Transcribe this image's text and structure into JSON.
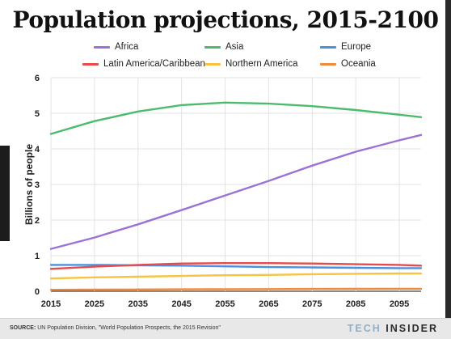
{
  "title": "Population projections, 2015-2100",
  "footer": {
    "source_label": "SOURCE:",
    "source_text": "UN Population Division, \"World Population Prospects, the 2015 Revision\"",
    "brand_tech": "TECH",
    "brand_insider": "INSIDER"
  },
  "chart_data": {
    "type": "line",
    "title": "Population projections, 2015-2100",
    "xlabel": "",
    "ylabel": "Billions of people",
    "xlim": [
      2015,
      2100
    ],
    "ylim": [
      0,
      6
    ],
    "x_ticks": [
      2015,
      2025,
      2035,
      2045,
      2055,
      2065,
      2075,
      2085,
      2095
    ],
    "y_ticks": [
      0,
      1,
      2,
      3,
      4,
      5,
      6
    ],
    "grid": true,
    "legend_position": "top",
    "x": [
      2015,
      2025,
      2035,
      2045,
      2055,
      2065,
      2075,
      2085,
      2095,
      2100
    ],
    "series": [
      {
        "name": "Africa",
        "color": "#9b72d6",
        "values": [
          1.19,
          1.51,
          1.88,
          2.28,
          2.69,
          3.1,
          3.53,
          3.92,
          4.24,
          4.39
        ]
      },
      {
        "name": "Asia",
        "color": "#4dbb6e",
        "values": [
          4.42,
          4.78,
          5.05,
          5.23,
          5.3,
          5.27,
          5.2,
          5.09,
          4.96,
          4.89
        ]
      },
      {
        "name": "Europe",
        "color": "#4a90e2",
        "values": [
          0.74,
          0.74,
          0.73,
          0.72,
          0.7,
          0.68,
          0.67,
          0.66,
          0.65,
          0.65
        ]
      },
      {
        "name": "Latin America/Caribbean",
        "color": "#e84b4b",
        "values": [
          0.63,
          0.69,
          0.74,
          0.78,
          0.79,
          0.79,
          0.78,
          0.76,
          0.74,
          0.72
        ]
      },
      {
        "name": "Northern America",
        "color": "#f6c343",
        "values": [
          0.36,
          0.39,
          0.41,
          0.43,
          0.45,
          0.46,
          0.48,
          0.49,
          0.5,
          0.5
        ]
      },
      {
        "name": "Oceania",
        "color": "#ef8a3c",
        "values": [
          0.04,
          0.045,
          0.05,
          0.055,
          0.058,
          0.062,
          0.065,
          0.068,
          0.07,
          0.071
        ]
      }
    ]
  }
}
